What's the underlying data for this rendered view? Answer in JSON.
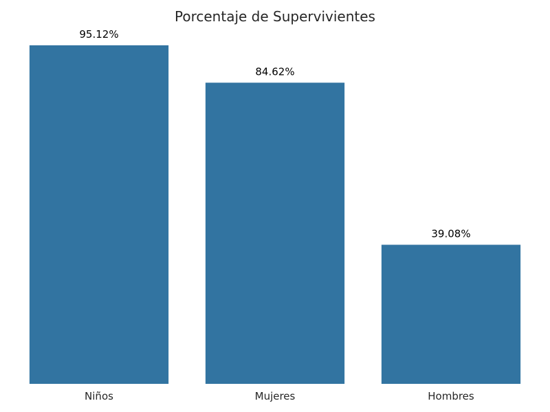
{
  "chart_data": {
    "type": "bar",
    "title": "Porcentaje de Supervivientes",
    "xlabel": "",
    "ylabel": "",
    "categories": [
      "Niños",
      "Mujeres",
      "Hombres"
    ],
    "values": [
      95.12,
      84.62,
      39.08
    ],
    "value_labels": [
      "95.12%",
      "84.62%",
      "39.08%"
    ],
    "ylim": [
      0,
      95.12
    ],
    "grid": false,
    "bar_color": "#3274a1"
  }
}
